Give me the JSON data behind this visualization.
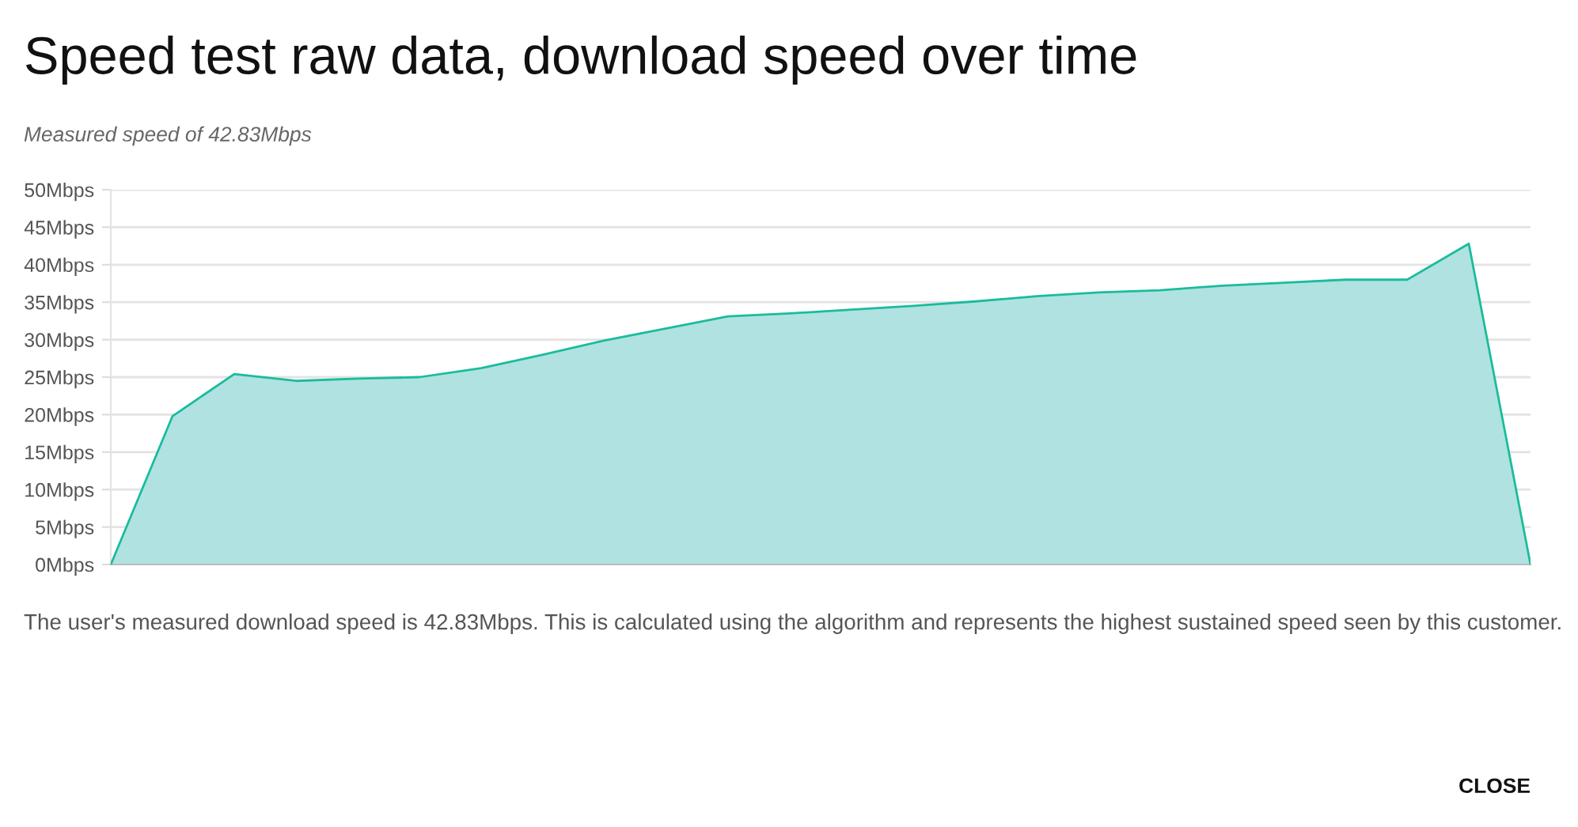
{
  "chart_data": {
    "type": "area",
    "title": "Speed test raw data, download speed over time",
    "subtitle": "Measured speed of 42.83Mbps",
    "categories": [
      null,
      null,
      null,
      null,
      null,
      null,
      null,
      null,
      null,
      null,
      null,
      null,
      null,
      null,
      null,
      null,
      null,
      null,
      null,
      null,
      null,
      null,
      null,
      null
    ],
    "series": [
      {
        "color": "#b0e2e2",
        "values": [
          0,
          19.8,
          25.4,
          24.5,
          24.8,
          25.0,
          26.2,
          28.0,
          29.9,
          31.5,
          33.1,
          33.5,
          34.0,
          34.5,
          35.1,
          35.8,
          36.3,
          36.6,
          37.2,
          37.6,
          38.0,
          38.0,
          42.8,
          0
        ]
      }
    ],
    "ylim": [
      0,
      50
    ],
    "yticks": [
      {
        "value": 0,
        "label": "0Mbps"
      },
      {
        "value": 5,
        "label": "5Mbps"
      },
      {
        "value": 10,
        "label": "10Mbps"
      },
      {
        "value": 15,
        "label": "15Mbps"
      },
      {
        "value": 20,
        "label": "20Mbps"
      },
      {
        "value": 25,
        "label": "25Mbps"
      },
      {
        "value": 30,
        "label": "30Mbps"
      },
      {
        "value": 35,
        "label": "35Mbps"
      },
      {
        "value": 40,
        "label": "40Mbps"
      },
      {
        "value": 45,
        "label": "45Mbps"
      },
      {
        "value": 50,
        "label": "50Mbps"
      }
    ],
    "grid": "y",
    "tick_labels": "y",
    "legend": false,
    "annotations": [
      "The user's measured download speed is 42.83Mbps. This is calculated using the algorithm and represents the highest sustained speed seen by this customer.",
      "CLOSE"
    ]
  }
}
